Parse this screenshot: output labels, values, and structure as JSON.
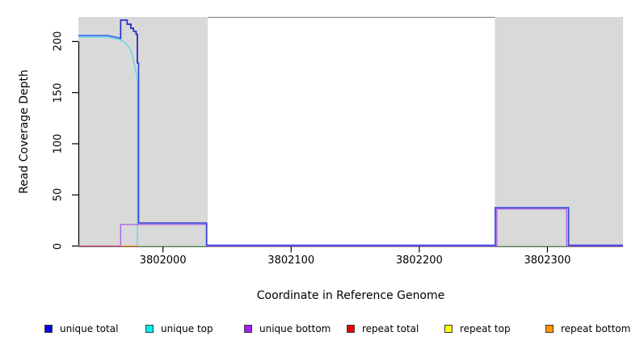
{
  "chart_data": {
    "type": "line",
    "title": "",
    "xlabel": "Coordinate in Reference Genome",
    "ylabel": "Read Coverage Depth",
    "xlim": [
      3801934,
      3802359
    ],
    "ylim": [
      0,
      224
    ],
    "grid": false,
    "x_ticks": [
      {
        "value": 3802000,
        "label": "3802000"
      },
      {
        "value": 3802100,
        "label": "3802100"
      },
      {
        "value": 3802200,
        "label": "3802200"
      },
      {
        "value": 3802300,
        "label": "3802300"
      }
    ],
    "y_ticks": [
      {
        "value": 0,
        "label": "0"
      },
      {
        "value": 50,
        "label": "50"
      },
      {
        "value": 100,
        "label": "100"
      },
      {
        "value": 150,
        "label": "150"
      },
      {
        "value": 200,
        "label": "200"
      }
    ],
    "background_regions": [
      {
        "name": "shaded-left",
        "x0": 3801934,
        "x1": 3802035,
        "color": "#d9d9d9"
      },
      {
        "name": "center-white",
        "x0": 3802035,
        "x1": 3802259,
        "color": "#ffffff",
        "top_border_color": "#8a8a8a"
      },
      {
        "name": "shaded-right",
        "x0": 3802259,
        "x1": 3802359,
        "color": "#d9d9d9"
      }
    ],
    "series": [
      {
        "name": "unique_top",
        "legend_label": "unique top",
        "legend_color": "#00eeee",
        "render_color": "#59d7e6",
        "points": [
          [
            3801934,
            204.5
          ],
          [
            3801956,
            204.5
          ],
          [
            3801962,
            203
          ],
          [
            3801966,
            202
          ],
          [
            3801969,
            200
          ],
          [
            3801971,
            198
          ],
          [
            3801973,
            195
          ],
          [
            3801975,
            191
          ],
          [
            3801976,
            187
          ],
          [
            3801977,
            182
          ],
          [
            3801978,
            176
          ],
          [
            3801979,
            170
          ],
          [
            3801980,
            162
          ],
          [
            3801980,
            0
          ]
        ]
      },
      {
        "name": "repeat_top",
        "legend_label": "repeat top",
        "legend_color": "#ffff00",
        "render_color": "#90d190",
        "points": [
          [
            3801980,
            0
          ],
          [
            3802359,
            0
          ]
        ]
      },
      {
        "name": "unique_bottom",
        "legend_label": "unique bottom",
        "legend_color": "#a020f0",
        "render_color": "#a95ae8",
        "points": [
          [
            3801934,
            0
          ],
          [
            3801967,
            0
          ],
          [
            3801967,
            21
          ],
          [
            3802034,
            21
          ],
          [
            3802034,
            0
          ],
          [
            3802260.5,
            0
          ],
          [
            3802260.5,
            36.3
          ],
          [
            3802315,
            36.3
          ],
          [
            3802315,
            0
          ],
          [
            3802359,
            0
          ]
        ]
      },
      {
        "name": "repeat_total",
        "legend_label": "repeat total",
        "legend_color": "#ee0000",
        "render_color": "#d4607f",
        "points": [
          [
            3801934,
            0
          ],
          [
            3801967,
            0
          ]
        ]
      },
      {
        "name": "repeat_bottom",
        "legend_label": "repeat bottom",
        "legend_color": "#ff9900",
        "render_color": "#ff9d22",
        "points": [
          [
            3801967,
            0
          ],
          [
            3801980,
            0
          ]
        ]
      },
      {
        "name": "unique_total",
        "legend_label": "unique total",
        "legend_color": "#0000ee",
        "render_color": "#2e3fd8",
        "points": [
          [
            3801934,
            206
          ],
          [
            3801956,
            206
          ],
          [
            3801960,
            205
          ],
          [
            3801964,
            204
          ],
          [
            3801967,
            203
          ],
          [
            3801967,
            221
          ],
          [
            3801972,
            221
          ],
          [
            3801972,
            217
          ],
          [
            3801975,
            217
          ],
          [
            3801975,
            213
          ],
          [
            3801977,
            213
          ],
          [
            3801977,
            210
          ],
          [
            3801979,
            210
          ],
          [
            3801979,
            207
          ],
          [
            3801980,
            207
          ],
          [
            3801980,
            179
          ],
          [
            3801981,
            179
          ],
          [
            3801981,
            22.5
          ],
          [
            3802034,
            22.5
          ],
          [
            3802034,
            0.8
          ],
          [
            3802259.3,
            0.8
          ],
          [
            3802259.3,
            37.5
          ],
          [
            3802316.5,
            37.5
          ],
          [
            3802316.5,
            0.8
          ],
          [
            3802359,
            0.8
          ]
        ]
      }
    ],
    "render_overlays": [
      {
        "name": "unique_total_flat_highlight",
        "color": "#4270f0",
        "points": [
          [
            3801934,
            206
          ],
          [
            3801956,
            206
          ],
          [
            3801960,
            205
          ],
          [
            3801964,
            204
          ],
          [
            3801967,
            203
          ]
        ]
      },
      {
        "name": "unique_total_peak_shade",
        "color": "#272bc8",
        "points": [
          [
            3801967,
            203
          ],
          [
            3801967,
            221
          ],
          [
            3801972,
            221
          ],
          [
            3801972,
            217
          ],
          [
            3801975,
            217
          ],
          [
            3801975,
            213
          ],
          [
            3801977,
            213
          ],
          [
            3801977,
            210
          ],
          [
            3801979,
            210
          ],
          [
            3801979,
            207
          ],
          [
            3801980,
            207
          ],
          [
            3801980,
            179
          ]
        ]
      }
    ],
    "legend_position": "bottom"
  },
  "legend": {
    "items": [
      {
        "label": "unique total",
        "color": "#0000ee"
      },
      {
        "label": "unique top",
        "color": "#00eeee"
      },
      {
        "label": "unique bottom",
        "color": "#a020f0"
      },
      {
        "label": "repeat total",
        "color": "#ee0000"
      },
      {
        "label": "repeat top",
        "color": "#ffff00"
      },
      {
        "label": "repeat bottom",
        "color": "#ff9900"
      }
    ]
  },
  "axis_color": "#000000"
}
